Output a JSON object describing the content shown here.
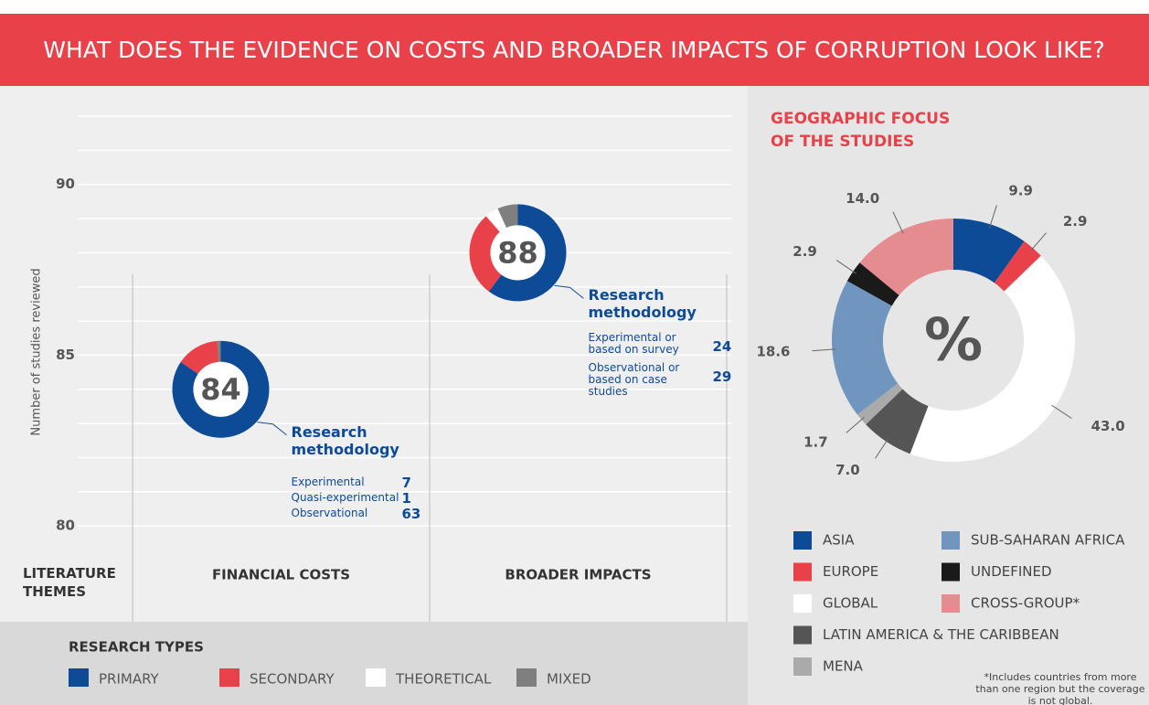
{
  "title": "WHAT DOES THE EVIDENCE ON COSTS AND BROADER IMPACTS OF CORRUPTION LOOK LIKE?",
  "chart_data": [
    {
      "type": "donut_scatter",
      "ylabel": "Number of studies reviewed",
      "ylim": [
        79.2,
        92
      ],
      "yticks": [
        80,
        85,
        90
      ],
      "minor_yticks": [
        81,
        82,
        83,
        84,
        86,
        87,
        88,
        89,
        91,
        92
      ],
      "grid": true,
      "row_label": "LITERATURE THEMES",
      "categories": [
        "FINANCIAL COSTS",
        "BROADER IMPACTS"
      ],
      "values": [
        84,
        88
      ],
      "legend_title": "RESEARCH TYPES",
      "series": [
        {
          "name": "PRIMARY",
          "color": "#0e4b96",
          "values": [
            71,
            53
          ]
        },
        {
          "name": "SECONDARY",
          "color": "#e8414a",
          "values": [
            12,
            25
          ]
        },
        {
          "name": "THEORETICAL",
          "color": "#ffffff",
          "values": [
            0,
            4
          ]
        },
        {
          "name": "MIXED",
          "color": "#7f7f7f",
          "values": [
            1,
            6
          ]
        }
      ],
      "annotations": [
        {
          "title": "Research methodology",
          "items": [
            {
              "label": "Experimental",
              "value": 7
            },
            {
              "label": "Quasi-experimental",
              "value": 1
            },
            {
              "label": "Observational",
              "value": 63
            }
          ]
        },
        {
          "title": "Research methodology",
          "items": [
            {
              "label": "Experimental or based on survey",
              "value": 24
            },
            {
              "label": "Observational or based on case studies",
              "value": 29
            }
          ]
        }
      ]
    },
    {
      "type": "donut",
      "title": "GEOGRAPHIC FOCUS OF THE STUDIES",
      "center_label": "%",
      "categories": [
        "ASIA",
        "EUROPE",
        "GLOBAL",
        "LATIN AMERICA & THE CARIBBEAN",
        "MENA",
        "SUB-SAHARAN AFRICA",
        "UNDEFINED",
        "CROSS-GROUP*"
      ],
      "values": [
        9.9,
        2.9,
        43.0,
        7.0,
        1.7,
        18.6,
        2.9,
        14.0
      ],
      "value_labels": [
        "9.9",
        "2.9",
        "43.0",
        "7.0",
        "1.7",
        "18.6",
        "2.9",
        "14.0"
      ],
      "colors": [
        "#0e4b96",
        "#e8414a",
        "#ffffff",
        "#555555",
        "#aaaaaa",
        "#7096bf",
        "#1a1a1a",
        "#e58c90"
      ],
      "footnote": "*Includes countries from more than one region but the coverage is not global."
    }
  ]
}
